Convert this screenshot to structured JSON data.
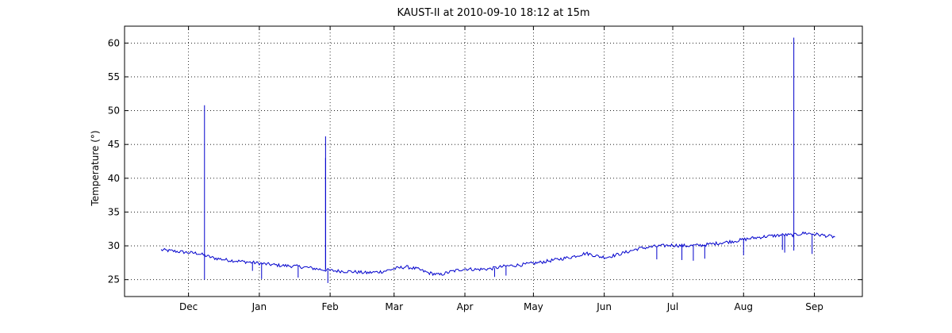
{
  "chart_data": {
    "type": "line",
    "title": "KAUST-II at 2010-09-10 18:12 at 15m",
    "xlabel": "",
    "ylabel": "Temperature (°)",
    "ylim": [
      22.5,
      62.5
    ],
    "y_ticks": [
      25,
      30,
      35,
      40,
      45,
      50,
      55,
      60
    ],
    "x_ticks": [
      "Dec",
      "Jan",
      "Feb",
      "Mar",
      "Apr",
      "May",
      "Jun",
      "Jul",
      "Aug",
      "Sep"
    ],
    "xlim": [
      "2009-11-03",
      "2010-09-22"
    ],
    "tick_dates": [
      "2009-12-01",
      "2010-01-01",
      "2010-02-01",
      "2010-03-01",
      "2010-04-01",
      "2010-05-01",
      "2010-06-01",
      "2010-07-01",
      "2010-08-01",
      "2010-09-01"
    ],
    "grid": true,
    "line_color": "#0000cc",
    "series": [
      {
        "x": [
          "2009-11-19",
          "2009-11-25",
          "2009-12-01",
          "2009-12-05",
          "2009-12-08",
          "2009-12-12",
          "2009-12-18",
          "2009-12-24",
          "2009-12-30",
          "2010-01-04",
          "2010-01-10",
          "2010-01-16",
          "2010-01-22",
          "2010-01-28",
          "2010-02-03",
          "2010-02-10",
          "2010-02-17",
          "2010-02-24",
          "2010-03-01",
          "2010-03-06",
          "2010-03-11",
          "2010-03-16",
          "2010-03-21",
          "2010-03-26",
          "2010-04-01",
          "2010-04-06",
          "2010-04-12",
          "2010-04-19",
          "2010-04-26",
          "2010-05-03",
          "2010-05-10",
          "2010-05-17",
          "2010-05-24",
          "2010-05-30",
          "2010-06-02",
          "2010-06-09",
          "2010-06-16",
          "2010-06-23",
          "2010-06-30",
          "2010-07-07",
          "2010-07-14",
          "2010-07-21",
          "2010-07-28",
          "2010-08-04",
          "2010-08-11",
          "2010-08-18",
          "2010-08-23",
          "2010-08-28",
          "2010-09-04",
          "2010-09-10"
        ],
        "y": [
          29.4,
          29.2,
          29.0,
          28.9,
          28.6,
          28.2,
          27.9,
          27.7,
          27.5,
          27.3,
          27.1,
          27.0,
          26.8,
          26.5,
          26.3,
          26.2,
          26.0,
          26.2,
          26.6,
          26.9,
          26.6,
          26.0,
          25.7,
          26.2,
          26.6,
          26.5,
          26.6,
          27.0,
          27.2,
          27.5,
          27.9,
          28.3,
          28.9,
          28.4,
          28.3,
          28.9,
          29.6,
          29.9,
          30.1,
          30.0,
          30.1,
          30.4,
          30.7,
          31.1,
          31.4,
          31.6,
          31.6,
          31.9,
          31.6,
          31.3
        ]
      }
    ],
    "spikes": [
      {
        "x": "2009-12-08",
        "y": 50.8
      },
      {
        "x": "2009-12-08",
        "y": 25.0
      },
      {
        "x": "2010-01-30",
        "y": 46.2
      },
      {
        "x": "2010-01-30",
        "y": 43.0
      },
      {
        "x": "2010-01-31",
        "y": 24.5
      },
      {
        "x": "2009-12-29",
        "y": 26.3
      },
      {
        "x": "2010-01-02",
        "y": 25.1
      },
      {
        "x": "2010-01-18",
        "y": 25.3
      },
      {
        "x": "2010-04-14",
        "y": 25.4
      },
      {
        "x": "2010-04-19",
        "y": 25.6
      },
      {
        "x": "2010-06-24",
        "y": 28.0
      },
      {
        "x": "2010-07-05",
        "y": 27.9
      },
      {
        "x": "2010-07-10",
        "y": 27.8
      },
      {
        "x": "2010-07-15",
        "y": 28.1
      },
      {
        "x": "2010-08-01",
        "y": 28.6
      },
      {
        "x": "2010-08-18",
        "y": 29.4
      },
      {
        "x": "2010-08-19",
        "y": 29.0
      },
      {
        "x": "2010-08-23",
        "y": 60.8
      },
      {
        "x": "2010-08-23",
        "y": 29.3
      },
      {
        "x": "2010-08-31",
        "y": 28.8
      }
    ]
  }
}
